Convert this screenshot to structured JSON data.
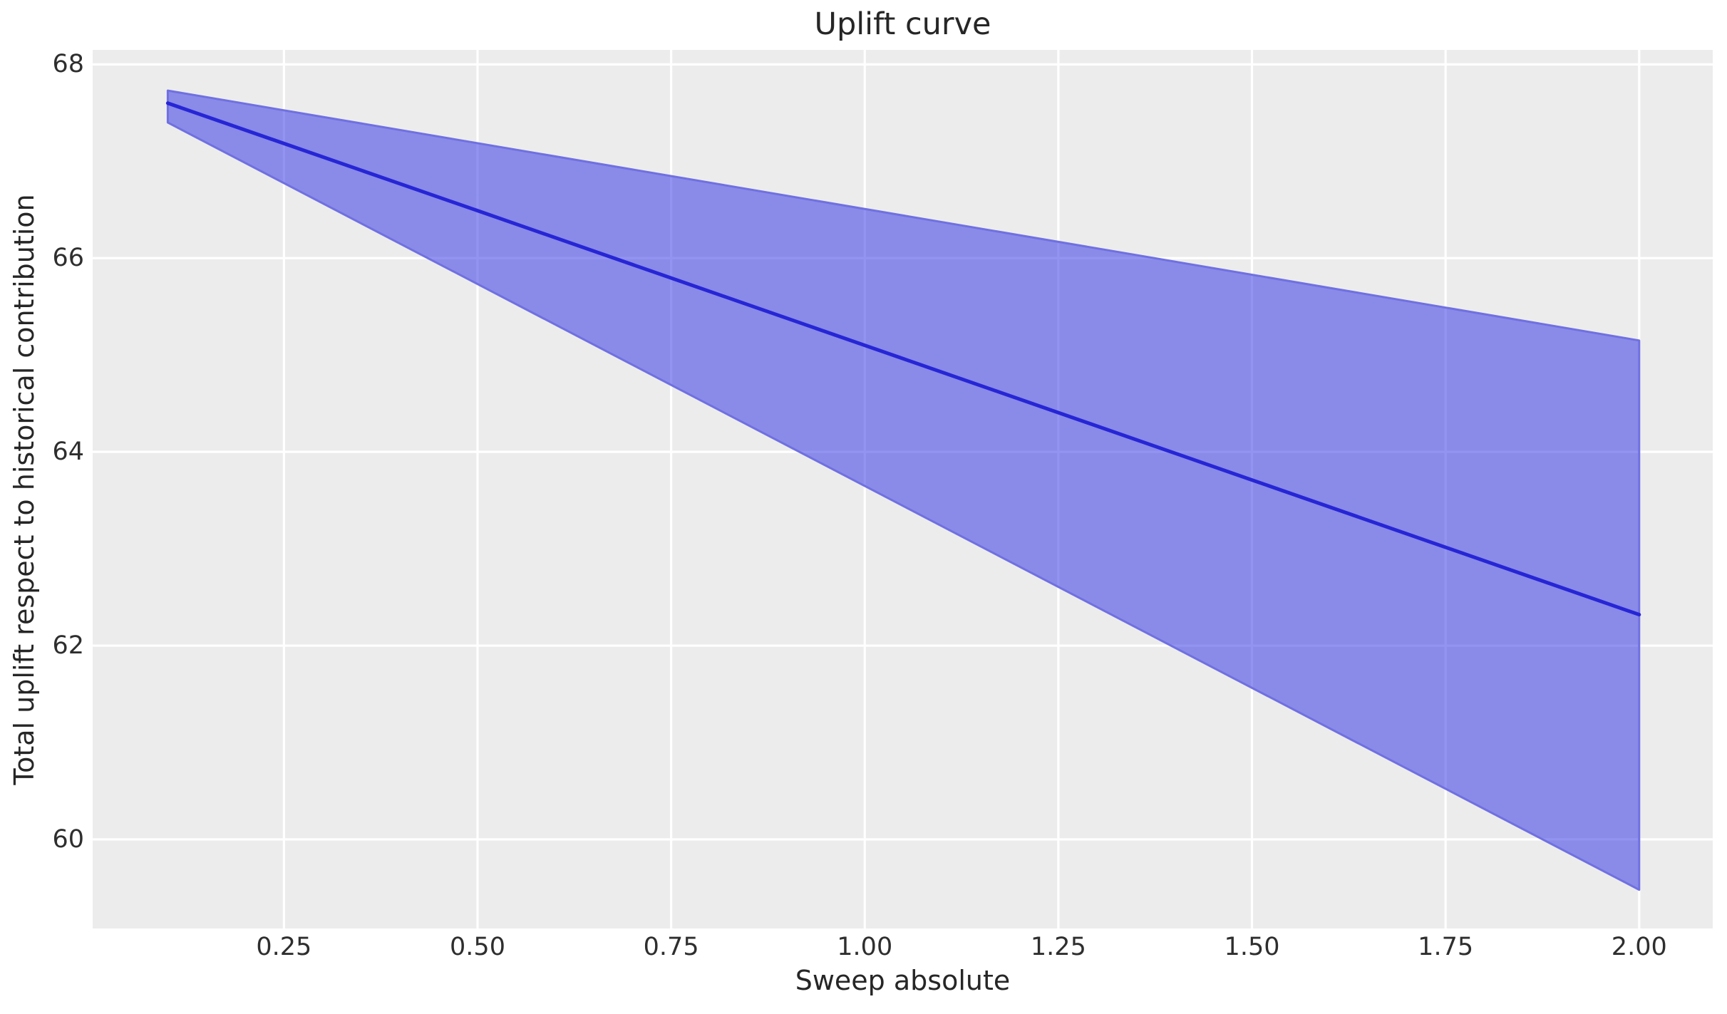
{
  "figure": {
    "background": "#ffffff",
    "axes_background": "#ececec",
    "grid_color": "#ffffff",
    "title_color": "#262626",
    "tick_color": "#2e2e2e"
  },
  "chart_data": {
    "type": "line",
    "title": "Uplift curve",
    "xlabel": "Sweep absolute",
    "ylabel": "Total uplift respect to historical contribution",
    "grid": true,
    "legend": "none",
    "xlim": [
      0.003,
      2.095
    ],
    "ylim": [
      59.08,
      68.15
    ],
    "x_ticks": [
      {
        "value": 0.25,
        "label": "0.25"
      },
      {
        "value": 0.5,
        "label": "0.50"
      },
      {
        "value": 0.75,
        "label": "0.75"
      },
      {
        "value": 1.0,
        "label": "1.00"
      },
      {
        "value": 1.25,
        "label": "1.25"
      },
      {
        "value": 1.5,
        "label": "1.50"
      },
      {
        "value": 1.75,
        "label": "1.75"
      },
      {
        "value": 2.0,
        "label": "2.00"
      }
    ],
    "y_ticks": [
      {
        "value": 60,
        "label": "60"
      },
      {
        "value": 62,
        "label": "62"
      },
      {
        "value": 64,
        "label": "64"
      },
      {
        "value": 66,
        "label": "66"
      },
      {
        "value": 68,
        "label": "68"
      }
    ],
    "series": [
      {
        "name": "mean-uplift-line",
        "color": "#2626d6",
        "line_width": 5,
        "x": [
          0.1,
          0.5,
          1.0,
          1.5,
          2.0
        ],
        "y": [
          67.6,
          66.49,
          65.1,
          63.71,
          62.32
        ]
      }
    ],
    "band": {
      "name": "confidence-interval",
      "fill_color": "rgba(58,58,229,0.55)",
      "edge_color": "#7070e2",
      "edge_width": 3,
      "x": [
        0.1,
        2.0
      ],
      "upper": [
        67.73,
        65.15
      ],
      "lower": [
        67.4,
        59.48
      ]
    }
  }
}
